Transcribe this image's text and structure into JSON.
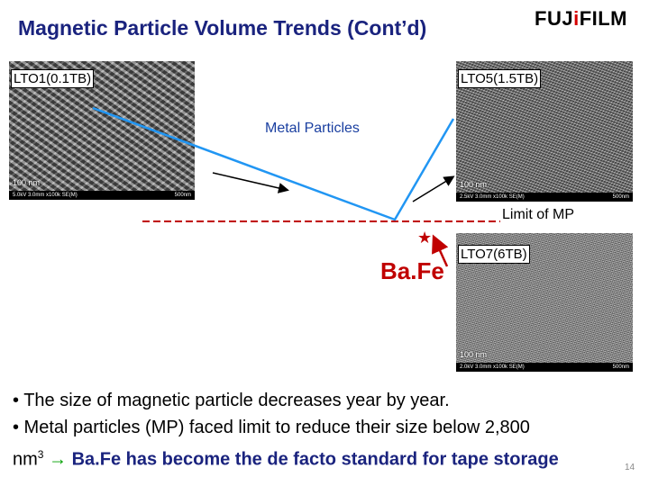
{
  "title": "Magnetic Particle Volume Trends (Cont’d)",
  "logo": {
    "part1": "FUJ",
    "part2": "i",
    "part3": "FILM"
  },
  "images": {
    "lto1": {
      "label": "LTO1(0.1TB)",
      "scale": "100 nm",
      "footer_left": "5.0kV 3.0mm x100k SE(M)",
      "footer_right": "500nm"
    },
    "lto5": {
      "label": "LTO5(1.5TB)",
      "scale": "100 nm",
      "footer_left": "2.5kV 3.0mm x100k SE(M)",
      "footer_right": "500nm"
    },
    "lto7": {
      "label": "LTO7(6TB)",
      "scale": "100 nm",
      "footer_left": "2.0kV 3.0mm x100k SE(M)",
      "footer_right": "500nm"
    }
  },
  "annotations": {
    "metal_particles": "Metal Particles",
    "limit_of_mp": "Limit of MP",
    "bafe": "Ba.Fe",
    "star": "★"
  },
  "bullets": {
    "b1": "• The size of magnetic particle decreases year by year.",
    "b2": "• Metal particles (MP) faced limit to reduce their size below 2,800",
    "b3_unit": "nm",
    "b3_sup": "3",
    "arrow": "→",
    "conclusion": "Ba.Fe has become the de facto standard for tape storage"
  },
  "page_number": "14",
  "colors": {
    "title": "#1a237e",
    "accent_blue_arrow": "#2196f3",
    "limit_line": "#c00000",
    "bafe": "#c00000",
    "arrow_green": "#00a000"
  }
}
